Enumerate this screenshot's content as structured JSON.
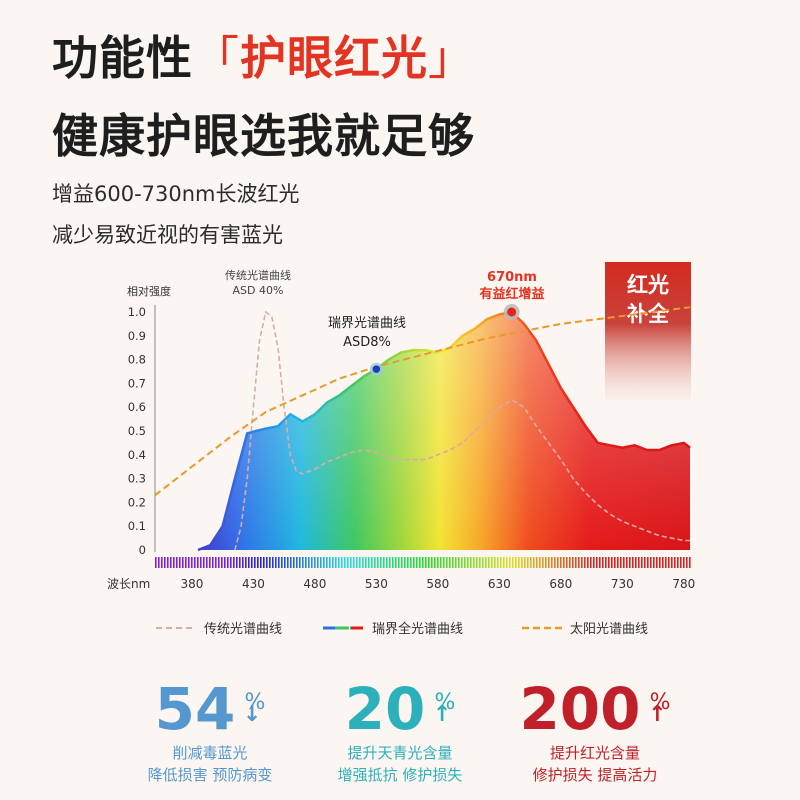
{
  "headline": {
    "line1_prefix": "功能性",
    "line1_open": "「",
    "line1_highlight": "护眼红光",
    "line1_close": "」",
    "line2": "健康护眼选我就足够"
  },
  "subline": {
    "line1": "增益600-730nm长波红光",
    "line2": "减少易致近视的有害蓝光"
  },
  "colors": {
    "highlight": "#e23323",
    "traditional": "#d9aaaa",
    "sun": "#e89a2a",
    "stat1": "#5597cf",
    "stat2": "#2cb0bb",
    "stat3": "#c0202a"
  },
  "chart_data": {
    "type": "area",
    "ylabel": "相对强度",
    "xlabel": "波长nm",
    "ylim": [
      0,
      1.0
    ],
    "xlim": [
      350,
      785
    ],
    "yticks": [
      "0",
      "0.1",
      "0.2",
      "0.3",
      "0.4",
      "0.5",
      "0.6",
      "0.7",
      "0.8",
      "0.9",
      "1.0"
    ],
    "xticks": [
      380,
      430,
      480,
      530,
      580,
      630,
      680,
      730,
      780
    ],
    "series": [
      {
        "name": "瑞界全光谱曲线",
        "x": [
          385,
          395,
          405,
          415,
          425,
          432,
          440,
          450,
          460,
          470,
          480,
          490,
          500,
          510,
          520,
          530,
          540,
          550,
          560,
          570,
          580,
          590,
          600,
          610,
          620,
          630,
          640,
          650,
          660,
          670,
          680,
          690,
          700,
          710,
          720,
          730,
          740,
          750,
          760,
          770,
          780,
          785
        ],
        "y": [
          0,
          0.02,
          0.1,
          0.3,
          0.49,
          0.5,
          0.51,
          0.52,
          0.57,
          0.54,
          0.57,
          0.62,
          0.65,
          0.69,
          0.73,
          0.76,
          0.8,
          0.83,
          0.84,
          0.84,
          0.83,
          0.85,
          0.9,
          0.93,
          0.97,
          0.99,
          1.0,
          0.95,
          0.88,
          0.78,
          0.68,
          0.6,
          0.52,
          0.45,
          0.44,
          0.43,
          0.44,
          0.42,
          0.42,
          0.44,
          0.45,
          0.43
        ]
      },
      {
        "name": "传统光谱曲线",
        "x": [
          415,
          420,
          425,
          430,
          435,
          440,
          445,
          450,
          455,
          460,
          465,
          470,
          480,
          490,
          500,
          510,
          520,
          530,
          540,
          550,
          560,
          570,
          580,
          590,
          600,
          610,
          620,
          630,
          640,
          650,
          660,
          670,
          680,
          690,
          700,
          710,
          720,
          730,
          740,
          750,
          760,
          770,
          780,
          785
        ],
        "y": [
          0,
          0.1,
          0.3,
          0.6,
          0.88,
          1.0,
          0.98,
          0.85,
          0.6,
          0.4,
          0.33,
          0.32,
          0.34,
          0.37,
          0.39,
          0.41,
          0.42,
          0.41,
          0.39,
          0.38,
          0.38,
          0.38,
          0.4,
          0.42,
          0.45,
          0.5,
          0.55,
          0.6,
          0.63,
          0.6,
          0.52,
          0.45,
          0.38,
          0.3,
          0.24,
          0.19,
          0.15,
          0.12,
          0.1,
          0.08,
          0.06,
          0.05,
          0.04,
          0.04
        ]
      },
      {
        "name": "太阳光谱曲线",
        "x": [
          350,
          380,
          410,
          440,
          470,
          500,
          530,
          560,
          590,
          620,
          650,
          680,
          710,
          740,
          785
        ],
        "y": [
          0.23,
          0.35,
          0.47,
          0.58,
          0.65,
          0.72,
          0.77,
          0.81,
          0.85,
          0.89,
          0.92,
          0.95,
          0.97,
          0.99,
          1.02
        ]
      }
    ],
    "annotations": {
      "traditional_title": "传统光谱曲线",
      "traditional_asd": "ASD 40%",
      "ruijie_title": "瑞界光谱曲线",
      "ruijie_asd": "ASD8%",
      "peak_nm": "670nm",
      "peak_label": "有益红增益",
      "badge_line1": "红光",
      "badge_line2": "补全"
    },
    "legend": {
      "placement": "bottom",
      "items": [
        "传统光谱曲线",
        "瑞界全光谱曲线",
        "太阳光谱曲线"
      ]
    }
  },
  "stats": [
    {
      "value": "54",
      "unit": "%",
      "arrow": "↓",
      "line1": "削减毒蓝光",
      "line2": "降低损害 预防病变"
    },
    {
      "value": "20",
      "unit": "%",
      "arrow": "↑",
      "line1": "提升天青光含量",
      "line2": "增强抵抗 修护损失"
    },
    {
      "value": "200",
      "unit": "%",
      "arrow": "↑",
      "line1": "提升红光含量",
      "line2": "修护损失 提高活力"
    }
  ]
}
